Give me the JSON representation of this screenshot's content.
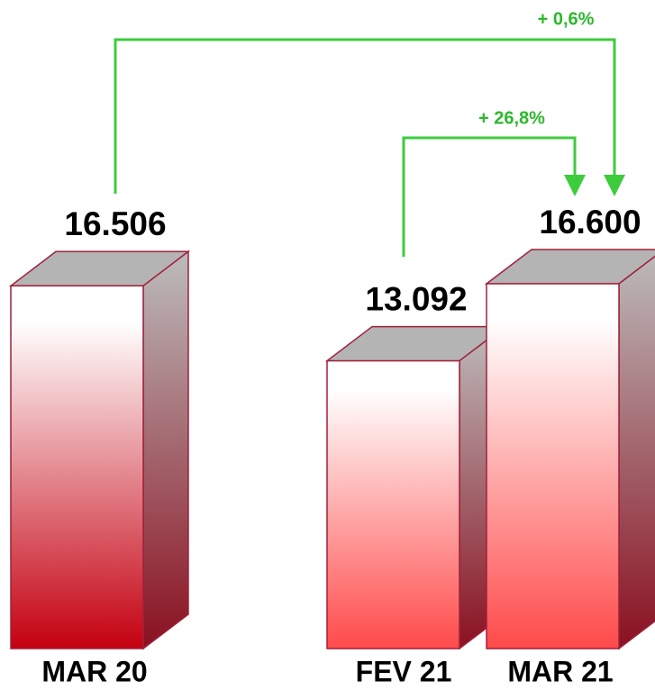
{
  "chart_data": {
    "type": "bar3d",
    "categories": [
      "MAR 20",
      "FEV 21",
      "MAR 21"
    ],
    "values": [
      16506,
      13092,
      16600
    ],
    "value_labels": [
      "16.506",
      "13.092",
      "16.600"
    ],
    "annotations": [
      "+ 0,6%",
      "+ 26,8%"
    ]
  }
}
